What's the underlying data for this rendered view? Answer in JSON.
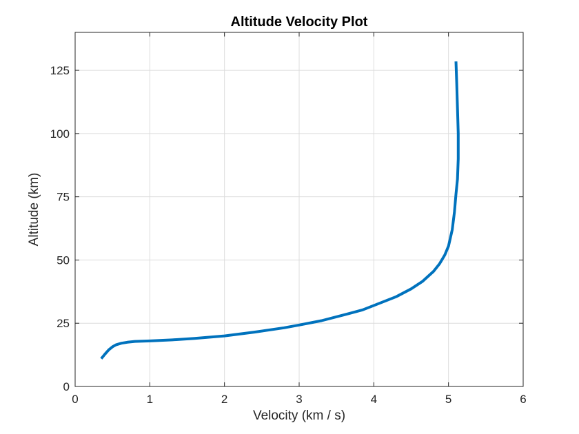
{
  "chart_data": {
    "type": "line",
    "title": "Altitude Velocity Plot",
    "xlabel": "Velocity (km / s)",
    "ylabel": "Altitude (km)",
    "xlim": [
      0,
      6
    ],
    "ylim": [
      0,
      140
    ],
    "xticks": [
      0,
      1,
      2,
      3,
      4,
      5,
      6
    ],
    "yticks": [
      0,
      25,
      50,
      75,
      100,
      125
    ],
    "xtick_labels": [
      "0",
      "1",
      "2",
      "3",
      "4",
      "5",
      "6"
    ],
    "ytick_labels": [
      "0",
      "25",
      "50",
      "75",
      "100",
      "125"
    ],
    "grid": true,
    "series": [
      {
        "color": "#0072bd",
        "x": [
          0.35,
          0.4,
          0.45,
          0.5,
          0.55,
          0.62,
          0.7,
          0.8,
          1.0,
          1.3,
          1.6,
          2.0,
          2.4,
          2.8,
          3.0,
          3.3,
          3.6,
          3.85,
          4.05,
          4.3,
          4.5,
          4.65,
          4.8,
          4.88,
          4.95,
          5.0,
          5.05,
          5.08,
          5.1,
          5.12,
          5.13,
          5.13,
          5.12,
          5.11,
          5.1
        ],
        "y": [
          11.0,
          12.8,
          14.5,
          15.7,
          16.5,
          17.1,
          17.5,
          17.8,
          18.0,
          18.4,
          19.0,
          20.0,
          21.5,
          23.2,
          24.3,
          26.0,
          28.3,
          30.3,
          32.6,
          35.5,
          38.6,
          41.5,
          45.5,
          48.5,
          52.0,
          55.5,
          62.0,
          69.0,
          76.0,
          82.0,
          90.0,
          100.0,
          110.0,
          120.0,
          128.5
        ]
      }
    ]
  }
}
